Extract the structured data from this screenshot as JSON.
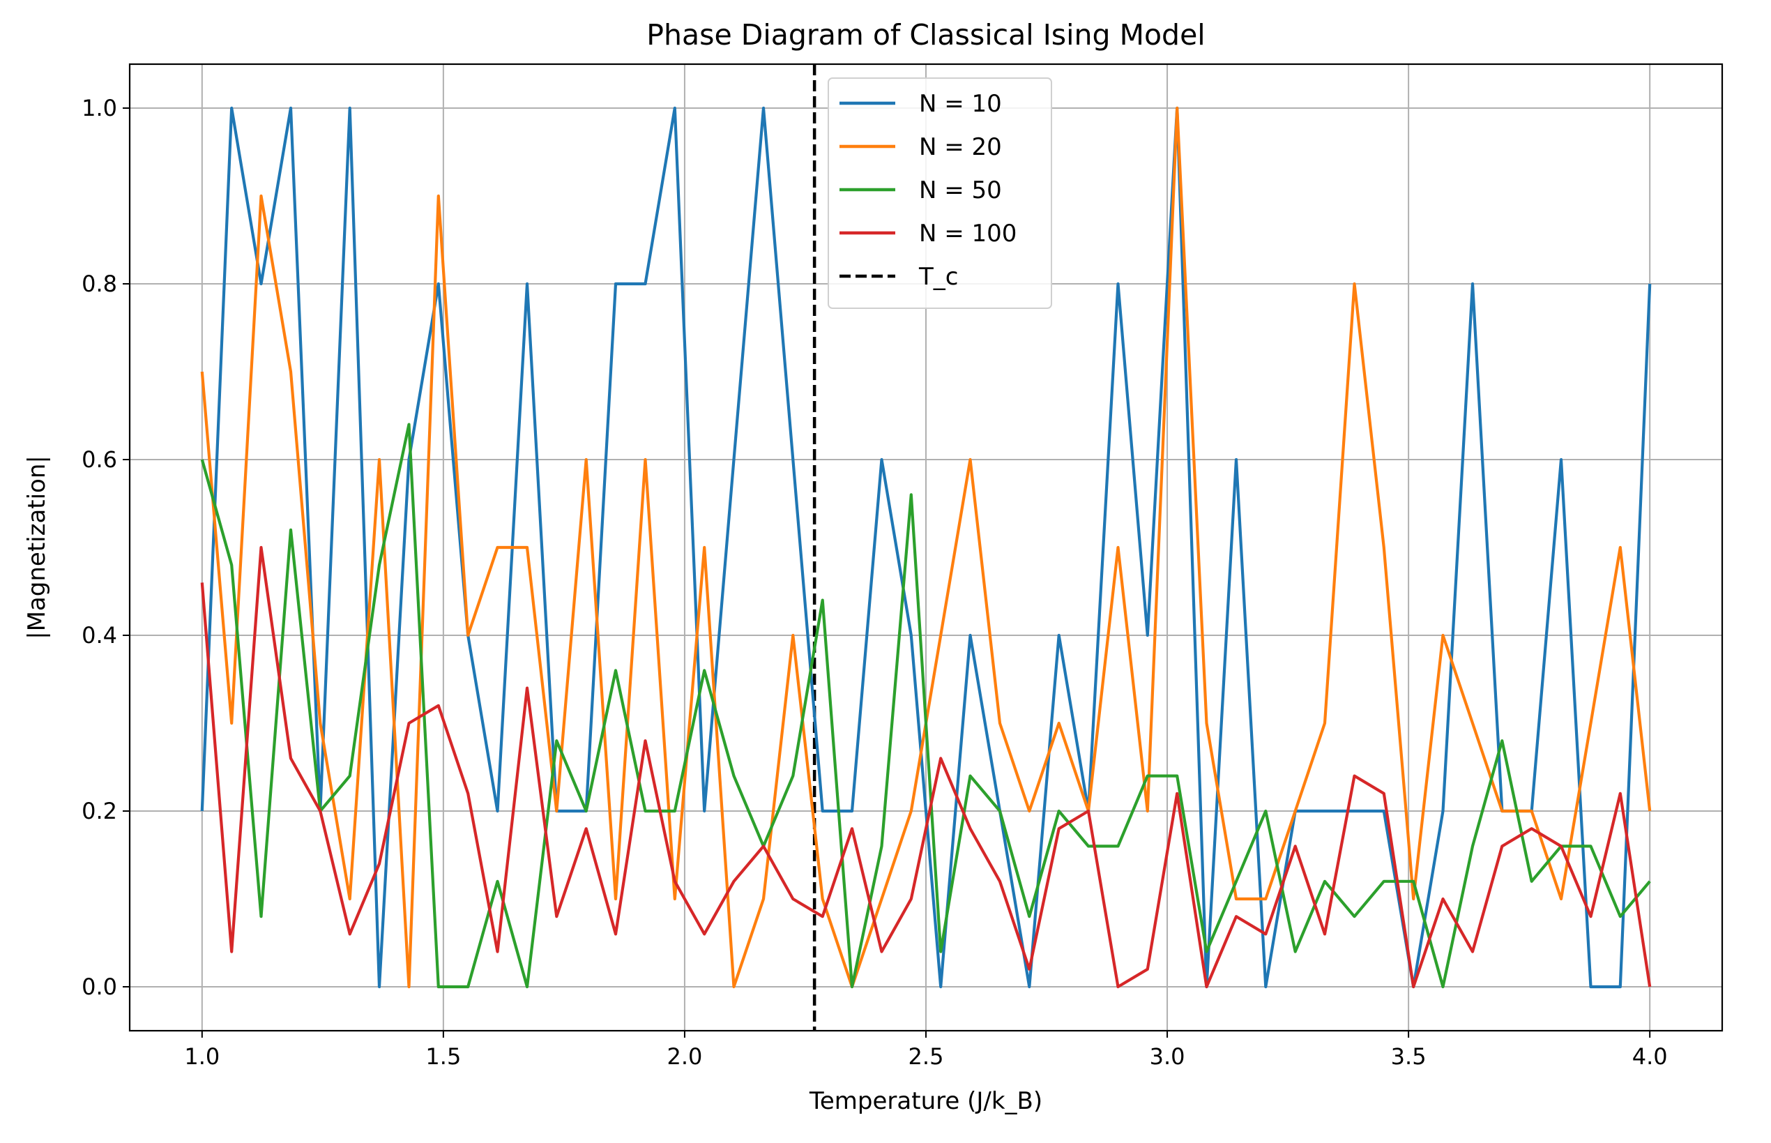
{
  "chart_data": {
    "type": "line",
    "title": "Phase Diagram of Classical Ising Model",
    "xlabel": "Temperature (J/k_B)",
    "ylabel": "|Magnetization|",
    "xlim": [
      0.85,
      4.15
    ],
    "ylim": [
      -0.05,
      1.05
    ],
    "x_ticks": [
      1.0,
      1.5,
      2.0,
      2.5,
      3.0,
      3.5,
      4.0
    ],
    "x_tick_labels": [
      "1.0",
      "1.5",
      "2.0",
      "2.5",
      "3.0",
      "3.5",
      "4.0"
    ],
    "y_ticks": [
      0.0,
      0.2,
      0.4,
      0.6,
      0.8,
      1.0
    ],
    "y_tick_labels": [
      "0.0",
      "0.2",
      "0.4",
      "0.6",
      "0.8",
      "1.0"
    ],
    "grid": true,
    "legend_position": "top-center",
    "x": [
      1.0,
      1.0612,
      1.1224,
      1.1837,
      1.2449,
      1.3061,
      1.3673,
      1.4286,
      1.4898,
      1.551,
      1.6122,
      1.6735,
      1.7347,
      1.7959,
      1.8571,
      1.9184,
      1.9796,
      2.0408,
      2.102,
      2.1633,
      2.2245,
      2.2857,
      2.3469,
      2.4082,
      2.4694,
      2.5306,
      2.5918,
      2.6531,
      2.7143,
      2.7755,
      2.8367,
      2.898,
      2.9592,
      3.0204,
      3.0816,
      3.1429,
      3.2041,
      3.2653,
      3.3265,
      3.3878,
      3.449,
      3.5102,
      3.5714,
      3.6327,
      3.6939,
      3.7551,
      3.8163,
      3.8776,
      3.9388,
      4.0
    ],
    "series": [
      {
        "name": "N = 10",
        "color": "#1f77b4",
        "values": [
          0.2,
          1.0,
          0.8,
          1.0,
          0.2,
          1.0,
          0.0,
          0.6,
          0.8,
          0.4,
          0.2,
          0.8,
          0.2,
          0.2,
          0.8,
          0.8,
          1.0,
          0.2,
          0.6,
          1.0,
          0.6,
          0.2,
          0.2,
          0.6,
          0.4,
          0.0,
          0.4,
          0.2,
          0.0,
          0.4,
          0.2,
          0.8,
          0.4,
          1.0,
          0.0,
          0.6,
          0.0,
          0.2,
          0.2,
          0.2,
          0.2,
          0.0,
          0.2,
          0.8,
          0.2,
          0.2,
          0.6,
          0.0,
          0.0,
          0.8
        ]
      },
      {
        "name": "N = 20",
        "color": "#ff7f0e",
        "values": [
          0.7,
          0.3,
          0.9,
          0.7,
          0.3,
          0.1,
          0.6,
          0.0,
          0.9,
          0.4,
          0.5,
          0.5,
          0.2,
          0.6,
          0.1,
          0.6,
          0.1,
          0.5,
          0.0,
          0.1,
          0.4,
          0.1,
          0.0,
          0.1,
          0.2,
          0.4,
          0.6,
          0.3,
          0.2,
          0.3,
          0.2,
          0.5,
          0.2,
          1.0,
          0.3,
          0.1,
          0.1,
          0.2,
          0.3,
          0.8,
          0.5,
          0.1,
          0.4,
          0.3,
          0.2,
          0.2,
          0.1,
          0.3,
          0.5,
          0.2
        ]
      },
      {
        "name": "N = 50",
        "color": "#2ca02c",
        "values": [
          0.6,
          0.48,
          0.08,
          0.52,
          0.2,
          0.24,
          0.48,
          0.64,
          0.0,
          0.0,
          0.12,
          0.0,
          0.28,
          0.2,
          0.36,
          0.2,
          0.2,
          0.36,
          0.24,
          0.16,
          0.24,
          0.44,
          0.0,
          0.16,
          0.56,
          0.04,
          0.24,
          0.2,
          0.08,
          0.2,
          0.16,
          0.16,
          0.24,
          0.24,
          0.04,
          0.12,
          0.2,
          0.04,
          0.12,
          0.08,
          0.12,
          0.12,
          0.0,
          0.16,
          0.28,
          0.12,
          0.16,
          0.16,
          0.08,
          0.12
        ]
      },
      {
        "name": "N = 100",
        "color": "#d62728",
        "values": [
          0.46,
          0.04,
          0.5,
          0.26,
          0.2,
          0.06,
          0.14,
          0.3,
          0.32,
          0.22,
          0.04,
          0.34,
          0.08,
          0.18,
          0.06,
          0.28,
          0.12,
          0.06,
          0.12,
          0.16,
          0.1,
          0.08,
          0.18,
          0.04,
          0.1,
          0.26,
          0.18,
          0.12,
          0.02,
          0.18,
          0.2,
          0.0,
          0.02,
          0.22,
          0.0,
          0.08,
          0.06,
          0.16,
          0.06,
          0.24,
          0.22,
          0.0,
          0.1,
          0.04,
          0.16,
          0.18,
          0.16,
          0.08,
          0.22,
          0.0
        ]
      }
    ],
    "reference_line": {
      "name": "T_c",
      "x": 2.269,
      "color": "#000000",
      "style": "dashed"
    }
  }
}
